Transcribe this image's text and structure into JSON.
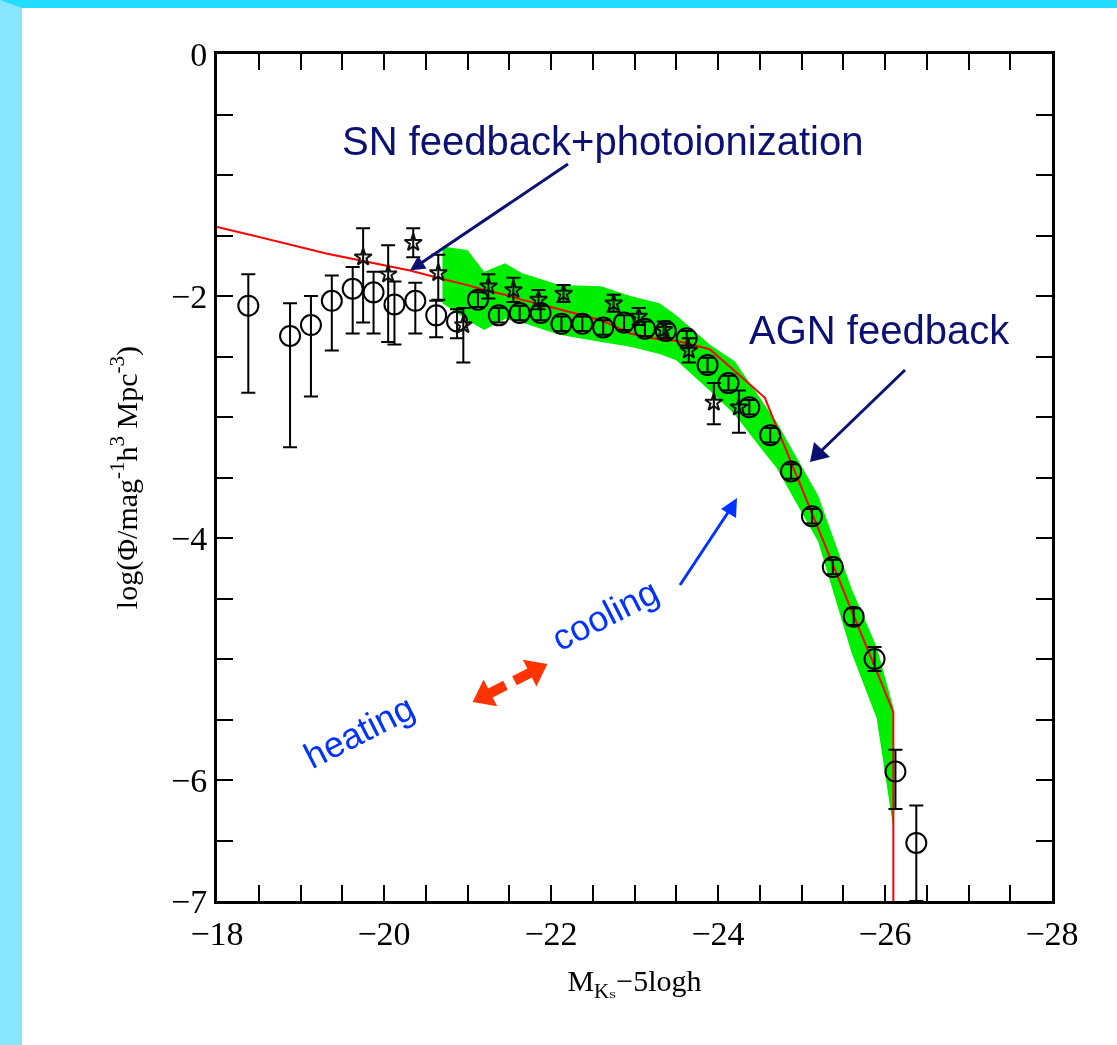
{
  "chart_data": {
    "type": "scatter",
    "xlabel": "M$_{Kₛ}$−5logh",
    "ylabel": "log(Φ/mag$^{-1}$h$^{3}$ Mpc$^{-3}$)",
    "xlim": [
      -18,
      -28
    ],
    "ylim": [
      -7,
      0
    ],
    "xticks": [
      -18,
      {
        "value": -18.5,
        "label": null
      },
      {
        "value": -19,
        "label": null
      },
      {
        "value": -19.5,
        "label": null
      },
      -20,
      {
        "value": -20.5,
        "label": null
      },
      {
        "value": -21,
        "label": null
      },
      {
        "value": -21.5,
        "label": null
      },
      -22,
      {
        "value": -22.5,
        "label": null
      },
      {
        "value": -23,
        "label": null
      },
      {
        "value": -23.5,
        "label": null
      },
      -24,
      {
        "value": -24.5,
        "label": null
      },
      {
        "value": -25,
        "label": null
      },
      {
        "value": -25.5,
        "label": null
      },
      -26,
      {
        "value": -26.5,
        "label": null
      },
      {
        "value": -27,
        "label": null
      },
      {
        "value": -27.5,
        "label": null
      },
      -28
    ],
    "yticks": [
      0,
      {
        "value": -0.5,
        "label": null
      },
      {
        "value": -1,
        "label": null
      },
      {
        "value": -1.5,
        "label": null
      },
      -2,
      {
        "value": -2.5,
        "label": null
      },
      {
        "value": -3,
        "label": null
      },
      {
        "value": -3.5,
        "label": null
      },
      -4,
      {
        "value": -4.5,
        "label": null
      },
      {
        "value": -5,
        "label": null
      },
      {
        "value": -5.5,
        "label": null
      },
      -6,
      {
        "value": -6.5,
        "label": null
      },
      -7
    ],
    "grid": false,
    "series": [
      {
        "type": "line",
        "color": "#ff0000",
        "line_style": "solid",
        "marker": "none",
        "x": [
          -18,
          -18.43,
          -19.32,
          -20.31,
          -20.7,
          -21.0,
          -21.2,
          -21.45,
          -21.65,
          -22.1,
          -22.6,
          -22.95,
          -23.3,
          -23.5,
          -23.9,
          -24.2,
          -24.56,
          -24.7,
          -25.2,
          -25.6,
          -25.9,
          -26.1,
          -26.1
        ],
        "values": [
          -1.43,
          -1.5,
          -1.65,
          -1.79,
          -1.86,
          -1.91,
          -1.95,
          -1.99,
          -2.03,
          -2.11,
          -2.2,
          -2.31,
          -2.36,
          -2.37,
          -2.44,
          -2.62,
          -2.84,
          -3.08,
          -3.92,
          -4.6,
          -5.1,
          -5.44,
          -7
        ],
        "upper": [
          null,
          null,
          null,
          null,
          -1.59,
          -1.62,
          -1.8,
          -1.73,
          -1.81,
          -1.91,
          -1.92,
          -2.0,
          -2.06,
          -2.16,
          -2.4,
          -2.54,
          -2.9,
          -3.04,
          -3.65,
          -4.42,
          -4.9,
          -5.4,
          -5.64
        ],
        "lower": [
          null,
          null,
          null,
          null,
          -2.06,
          -2.2,
          -2.28,
          -2.19,
          -2.22,
          -2.32,
          -2.38,
          -2.42,
          -2.48,
          -2.53,
          -2.78,
          -2.98,
          -3.3,
          -3.42,
          -4.03,
          -4.95,
          -5.49,
          -6.4,
          -7
        ]
      },
      {
        "color": "#000000",
        "marker": "circle",
        "x": [
          -18.375,
          -18.875,
          -19.125,
          -19.375,
          -19.625,
          -19.875,
          -20.125,
          -20.375,
          -20.625,
          -20.875,
          -21.125,
          -21.375,
          -21.625,
          -21.875,
          -22.125,
          -22.375,
          -22.625,
          -22.875,
          -23.125,
          -23.375,
          -23.625,
          -23.875,
          -24.125,
          -24.375,
          -24.625,
          -24.875,
          -25.125,
          -25.375,
          -25.625,
          -25.875,
          -26.125,
          -26.375
        ],
        "values": [
          -2.08,
          -2.33,
          -2.24,
          -2.04,
          -1.94,
          -1.97,
          -2.07,
          -2.04,
          -2.16,
          -2.21,
          -2.03,
          -2.16,
          -2.14,
          -2.14,
          -2.23,
          -2.23,
          -2.26,
          -2.22,
          -2.27,
          -2.29,
          -2.35,
          -2.57,
          -2.72,
          -2.92,
          -3.15,
          -3.45,
          -3.82,
          -4.24,
          -4.65,
          -5.0,
          -5.93,
          -6.52
        ],
        "errors": [
          [
            -2.8,
            -1.82
          ],
          [
            -3.25,
            -2.06
          ],
          [
            -2.83,
            -2.0
          ],
          [
            -2.45,
            -1.83
          ],
          [
            -2.31,
            -1.76
          ],
          [
            -2.31,
            -1.8
          ],
          [
            -2.4,
            -1.88
          ],
          [
            -2.31,
            -1.89
          ],
          [
            -2.34,
            -2.04
          ],
          [
            -2.35,
            -2.11
          ],
          0.06,
          0.06,
          0.06,
          0.06,
          0.06,
          0.06,
          0.06,
          0.06,
          0.06,
          0.06,
          0.06,
          0.06,
          0.06,
          0.06,
          0.06,
          0.06,
          0.06,
          0.06,
          0.07,
          0.1,
          [
            -6.24,
            -5.75
          ],
          [
            -7,
            -6.21
          ]
        ]
      },
      {
        "color": "#111111",
        "marker": "star",
        "x": [
          -19.75,
          -20.05,
          -20.35,
          -20.65,
          -20.95,
          -21.25,
          -21.55,
          -21.85,
          -22.15,
          -22.75,
          -23.05,
          -23.35,
          -23.65,
          -23.95,
          -24.25
        ],
        "values": [
          -1.68,
          -1.82,
          -1.56,
          -1.81,
          -2.24,
          -1.92,
          -1.95,
          -2.03,
          -1.98,
          -2.06,
          -2.17,
          -2.28,
          -2.45,
          -2.88,
          -2.92
        ],
        "errors": [
          [
            -2.22,
            -1.44
          ],
          [
            -2.38,
            -1.58
          ],
          [
            -1.68,
            -1.44
          ],
          [
            -2.03,
            -1.66
          ],
          [
            -2.55,
            -2.1
          ],
          0.1,
          0.1,
          0.08,
          0.07,
          0.07,
          0.07,
          0.07,
          0.1,
          [
            -3.06,
            -2.72
          ],
          [
            -3.13,
            -2.78
          ]
        ]
      }
    ],
    "annotations": [
      {
        "text": "SN feedback+photoionization",
        "x": -20.31,
        "y": -1.79
      },
      "AGN feedback",
      "cooling",
      "heating"
    ]
  }
}
